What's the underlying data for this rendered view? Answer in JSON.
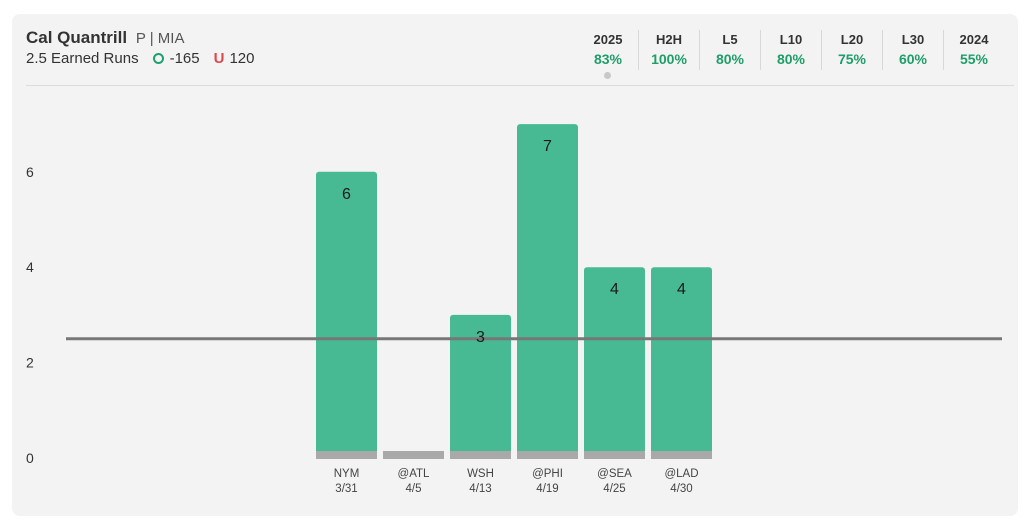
{
  "player": {
    "name": "Cal Quantrill",
    "meta": "P | MIA"
  },
  "market": {
    "prop": "2.5 Earned Runs",
    "over_odds": "-165",
    "under_symbol": "U",
    "under_odds": "120"
  },
  "stats": [
    {
      "label": "2025",
      "value": "83%",
      "selected": true
    },
    {
      "label": "H2H",
      "value": "100%"
    },
    {
      "label": "L5",
      "value": "80%"
    },
    {
      "label": "L10",
      "value": "80%"
    },
    {
      "label": "L20",
      "value": "75%"
    },
    {
      "label": "L30",
      "value": "60%"
    },
    {
      "label": "2024",
      "value": "55%"
    }
  ],
  "colors": {
    "over_bar": "#47ba94",
    "base_band": "#a9a9a9",
    "line": "#777777",
    "stat_value": "#1f9d6a",
    "under": "#e0474c"
  },
  "chart_data": {
    "type": "bar",
    "categories": [
      "NYM",
      "@ATL",
      "WSH",
      "@PHI",
      "@SEA",
      "@LAD"
    ],
    "dates": [
      "3/31",
      "4/5",
      "4/13",
      "4/19",
      "4/25",
      "4/30"
    ],
    "values": [
      6,
      0,
      3,
      7,
      4,
      4
    ],
    "threshold": 2.5,
    "yticks": [
      0,
      2,
      4,
      6
    ],
    "ylim": [
      0,
      7.3
    ],
    "grid": false,
    "title": "",
    "xlabel": "",
    "ylabel": ""
  }
}
